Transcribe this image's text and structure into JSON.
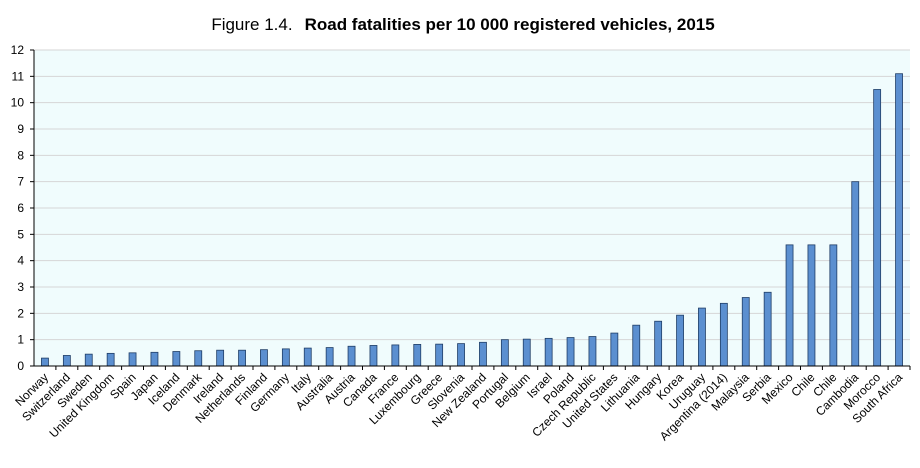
{
  "figure": {
    "prefix": "Figure 1.4.",
    "title": "Road fatalities per 10 000 registered vehicles, 2015"
  },
  "chart_data": {
    "type": "bar",
    "title": "Road fatalities per 10 000 registered vehicles, 2015",
    "xlabel": "",
    "ylabel": "",
    "ylim": [
      0,
      12
    ],
    "yticks": [
      "0",
      "1",
      "2",
      "3",
      "4",
      "5",
      "6",
      "7",
      "8",
      "9",
      "10",
      "11",
      "12"
    ],
    "grid": true,
    "legend": "none",
    "colors": {
      "bar_fill": "#5b8fd0",
      "bar_stroke": "#1f3d66",
      "plot_bg": "#f0fcfd",
      "grid": "#d6d6d6"
    },
    "categories": [
      "Norway",
      "Switzerland",
      "Sweden",
      "United Kingdom",
      "Spain",
      "Japan",
      "Iceland",
      "Denmark",
      "Ireland",
      "Netherlands",
      "Finland",
      "Germany",
      "Italy",
      "Australia",
      "Austria",
      "Canada",
      "France",
      "Luxembourg",
      "Greece",
      "Slovenia",
      "New Zealand",
      "Portugal",
      "Belgium",
      "Israel",
      "Poland",
      "Czech Republic",
      "United States",
      "Lithuania",
      "Hungary",
      "Korea",
      "Uruguay",
      "Argentina (2014)",
      "Malaysia",
      "Serbia",
      "Mexico",
      "Chile",
      "Chile",
      "Cambodia",
      "Morocco",
      "South Africa"
    ],
    "values": [
      0.3,
      0.4,
      0.45,
      0.48,
      0.5,
      0.52,
      0.55,
      0.58,
      0.6,
      0.6,
      0.62,
      0.65,
      0.68,
      0.7,
      0.75,
      0.78,
      0.8,
      0.82,
      0.83,
      0.85,
      0.9,
      1.0,
      1.02,
      1.05,
      1.08,
      1.12,
      1.25,
      1.55,
      1.7,
      1.93,
      2.2,
      2.38,
      2.6,
      2.8,
      4.6,
      4.6,
      4.6,
      7.0,
      10.5,
      11.1
    ]
  }
}
